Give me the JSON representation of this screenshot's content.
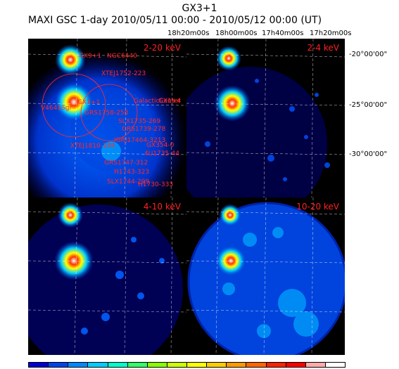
{
  "header": {
    "title": "GX3+1",
    "subtitle": "MAXI GSC 1-day 2010/05/11 00:00 - 2010/05/12 00:00 (UT)"
  },
  "ra_ticks": [
    "18h20m00s",
    "18h00m00s",
    "17h40m00s",
    "17h20m00s"
  ],
  "dec_ticks": [
    "-20°00'00\"",
    "-25°00'00\"",
    "-30°00'00\""
  ],
  "panels": [
    {
      "label": "2-20 keV"
    },
    {
      "label": "2-4 keV"
    },
    {
      "label": "4-10 keV"
    },
    {
      "label": "10-20 keV"
    }
  ],
  "sources": [
    "GX9+1",
    "NGC6440",
    "XTEJ1752-223",
    "V4641Sgr",
    "GX3+1",
    "GalacticCenter",
    "GX1+4",
    "SLX1735-269",
    "GRS1739-278",
    "XTEJ1810-189",
    "IGRJ17464-3213",
    "H1743-323",
    "GRS1747-312",
    "SLX1744-299",
    "H1730-333",
    "4U1735-44",
    "GX354-0",
    "GRS1758-258"
  ],
  "colorbar": [
    "#0000d0",
    "#0044ee",
    "#0088ff",
    "#00ccff",
    "#00ffcc",
    "#33ff66",
    "#88ff00",
    "#ccff00",
    "#ffff00",
    "#ffcc00",
    "#ff9900",
    "#ff6600",
    "#ff2200",
    "#ff0000",
    "#ffaaaa",
    "#ffffff"
  ]
}
